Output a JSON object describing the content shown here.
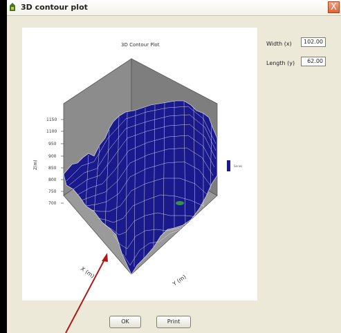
{
  "window": {
    "title": "3D contour plot",
    "close_glyph": "X"
  },
  "plot": {
    "title": "3D Contour Plot",
    "z_axis_label": "Z(m)",
    "z_ticks": [
      "1150",
      "1100",
      "950",
      "900",
      "850",
      "800",
      "750",
      "700"
    ],
    "x_axis_label": "X (m)",
    "y_axis_label": "Y (m)",
    "legend_label": "Series",
    "surface_color": "#1a1a8c",
    "wall_color": "#8c8c8c"
  },
  "fields": {
    "width_label": "Width (x)",
    "width_value": "102.00",
    "length_label": "Length (y)",
    "length_value": "62.00"
  },
  "buttons": {
    "ok_label": "OK",
    "print_label": "Print"
  },
  "annotation": {
    "arrow_color": "#b01818"
  }
}
